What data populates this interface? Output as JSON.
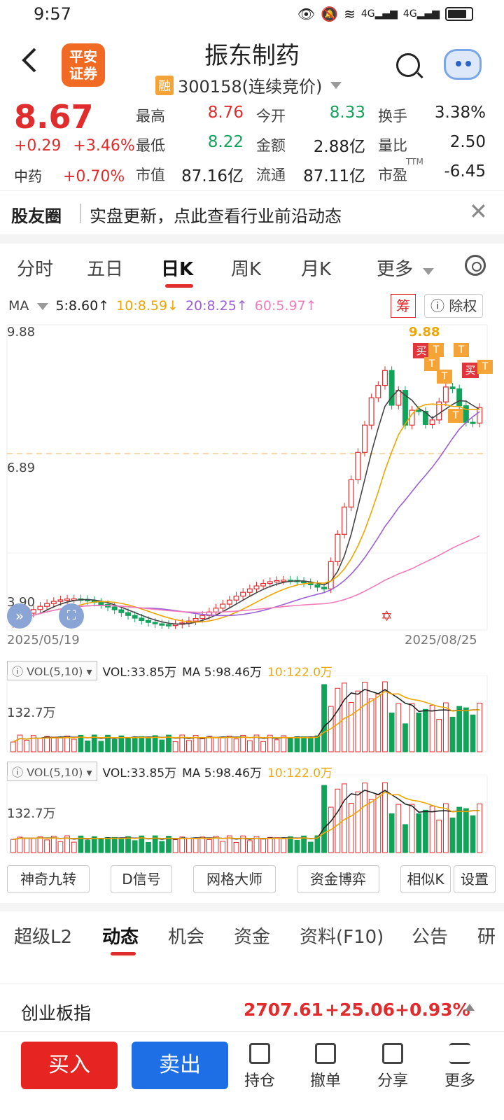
{
  "status": {
    "time": "9:57",
    "net": "4G"
  },
  "header": {
    "back_icon": "chevron-left-icon",
    "logo_line1": "平安",
    "logo_line2": "证券",
    "title": "振东制药",
    "margin_tag": "融",
    "subtitle": "300158(连续竞价)"
  },
  "quote": {
    "price": "8.67",
    "change": "+0.29",
    "change_pct": "+3.46%",
    "sector_name": "中药",
    "sector_pct": "+0.70%",
    "stats": [
      {
        "label": "最高",
        "value": "8.76",
        "color": "red"
      },
      {
        "label": "今开",
        "value": "8.33",
        "color": "green"
      },
      {
        "label": "换手",
        "value": "3.38%",
        "color": "dark"
      },
      {
        "label": "最低",
        "value": "8.22",
        "color": "green"
      },
      {
        "label": "金额",
        "value": "2.88亿",
        "color": "dark"
      },
      {
        "label": "量比",
        "value": "2.50",
        "color": "dark"
      },
      {
        "label": "市值",
        "value": "87.16亿",
        "color": "dark"
      },
      {
        "label": "流通",
        "value": "87.11亿",
        "color": "dark"
      },
      {
        "label": "市盈",
        "value": "-6.45",
        "color": "dark"
      }
    ],
    "ttm": "TTM"
  },
  "banner": {
    "tag": "股友圈",
    "text": "实盘更新，点此查看行业前沿动态"
  },
  "chart_tabs": [
    "分时",
    "五日",
    "日K",
    "周K",
    "月K",
    "更多"
  ],
  "ma_legend": {
    "label": "MA",
    "items": [
      {
        "text": "5:8.60↑",
        "color": "#222222"
      },
      {
        "text": "10:8.59↓",
        "color": "#f0a500"
      },
      {
        "text": "20:8.25↑",
        "color": "#9c5fd6"
      },
      {
        "text": "60:5.97↑",
        "color": "#f07cb9"
      }
    ],
    "chou": "筹",
    "chuquan": "除权"
  },
  "kline": {
    "y_max": "9.88",
    "y_mid": "6.89",
    "y_min": "3.90",
    "peak_label": "9.88",
    "date_start": "2025/05/19",
    "date_end": "2025/08/25",
    "buy_marker": "买",
    "t_marker": "T"
  },
  "vol1": {
    "tag": "VOL(5,10)",
    "vol": "VOL:33.85万",
    "ma5": "MA 5:98.46万",
    "ma10": "10:122.0万",
    "axis": "132.7万"
  },
  "vol2": {
    "tag": "VOL(5,10)",
    "vol": "VOL:33.85万",
    "ma5": "MA 5:98.46万",
    "ma10": "10:122.0万",
    "axis": "132.7万"
  },
  "tools": [
    "神奇九转",
    "D信号",
    "网格大师",
    "资金博弈",
    "相似K",
    "设置"
  ],
  "news_tabs": [
    "超级L2",
    "动态",
    "机会",
    "资金",
    "资料(F10)",
    "公告",
    "研"
  ],
  "index_bar": {
    "name": "创业板指",
    "value": "2707.61",
    "change": "+25.06",
    "pct": "+0.93%"
  },
  "bottom": {
    "buy": "买入",
    "sell": "卖出",
    "items": [
      "持仓",
      "撤单",
      "分享",
      "更多"
    ]
  }
}
